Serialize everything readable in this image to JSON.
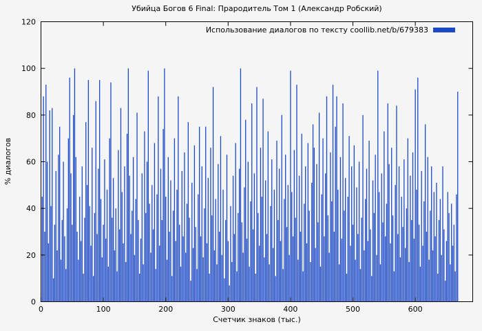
{
  "colors": {
    "bar": "#1b49c5",
    "background": "#f5f5f5",
    "axis": "#000000",
    "text": "#000000"
  },
  "chart_data": {
    "type": "bar",
    "title": "Убийца Богов 6 Final: Прародитель Том 1 (Александр Робский)",
    "legend": "Использование диалогов по тексту coollib.net/b/679383",
    "legend_position": "top-right-inside",
    "xlabel": "Счетчик знаков (тыс.)",
    "ylabel": "% диалогов",
    "xlim": [
      0,
      692
    ],
    "ylim": [
      0,
      120
    ],
    "x_ticks": [
      0,
      100,
      200,
      300,
      400,
      500,
      600
    ],
    "y_ticks": [
      0,
      20,
      40,
      60,
      80,
      100,
      120
    ],
    "grid": false,
    "x_start": 0,
    "x_step": 2,
    "values": [
      2,
      45,
      88,
      30,
      93,
      60,
      25,
      82,
      41,
      83,
      10,
      33,
      56,
      22,
      63,
      75,
      18,
      35,
      60,
      28,
      14,
      40,
      70,
      96,
      55,
      33,
      80,
      100,
      62,
      30,
      18,
      45,
      26,
      58,
      12,
      36,
      77,
      50,
      95,
      41,
      24,
      66,
      11,
      38,
      86,
      29,
      57,
      95,
      44,
      19,
      33,
      61,
      27,
      48,
      15,
      70,
      94,
      36,
      53,
      22,
      40,
      13,
      65,
      31,
      83,
      47,
      25,
      58,
      17,
      72,
      100,
      54,
      29,
      39,
      62,
      20,
      44,
      81,
      35,
      12,
      27,
      55,
      16,
      73,
      38,
      60,
      99,
      42,
      21,
      50,
      31,
      68,
      14,
      46,
      88,
      24,
      57,
      35,
      74,
      100,
      45,
      18,
      62,
      30,
      52,
      11,
      39,
      70,
      26,
      48,
      88,
      33,
      15,
      56,
      28,
      64,
      21,
      42,
      77,
      36,
      9,
      51,
      23,
      67,
      32,
      14,
      46,
      75,
      28,
      58,
      19,
      40,
      75,
      25,
      53,
      12,
      66,
      37,
      92,
      22,
      44,
      16,
      59,
      30,
      71,
      20,
      48,
      10,
      35,
      63,
      26,
      7,
      41,
      17,
      54,
      29,
      68,
      13,
      38,
      57,
      100,
      34,
      21,
      49,
      78,
      27,
      60,
      15,
      43,
      85,
      31,
      55,
      12,
      92,
      38,
      24,
      66,
      45,
      87,
      19,
      52,
      29,
      73,
      16,
      41,
      61,
      23,
      48,
      11,
      69,
      35,
      57,
      26,
      80,
      14,
      44,
      63,
      32,
      50,
      20,
      99,
      47,
      28,
      65,
      36,
      93,
      18,
      54,
      30,
      72,
      13,
      42,
      58,
      25,
      68,
      39,
      17,
      51,
      76,
      66,
      23,
      59,
      34,
      81,
      15,
      46,
      70,
      28,
      55,
      88,
      37,
      21,
      64,
      43,
      93,
      30,
      75,
      88,
      48,
      16,
      62,
      27,
      85,
      39,
      53,
      12,
      45,
      71,
      24,
      58,
      33,
      67,
      18,
      49,
      29,
      60,
      14,
      36,
      80,
      22,
      44,
      57,
      26,
      69,
      31,
      11,
      52,
      38,
      63,
      20,
      99,
      47,
      16,
      55,
      34,
      73,
      28,
      42,
      85,
      59,
      25,
      66,
      37,
      13,
      50,
      84,
      29,
      58,
      19,
      45,
      32,
      61,
      23,
      40,
      70,
      17,
      54,
      35,
      64,
      27,
      91,
      48,
      96,
      33,
      15,
      56,
      24,
      43,
      76,
      30,
      62,
      18,
      39,
      58,
      22,
      47,
      28,
      51,
      12,
      35,
      44,
      20,
      58,
      31,
      9,
      26,
      47,
      38,
      16,
      42,
      24,
      33,
      13,
      46,
      90
    ]
  }
}
